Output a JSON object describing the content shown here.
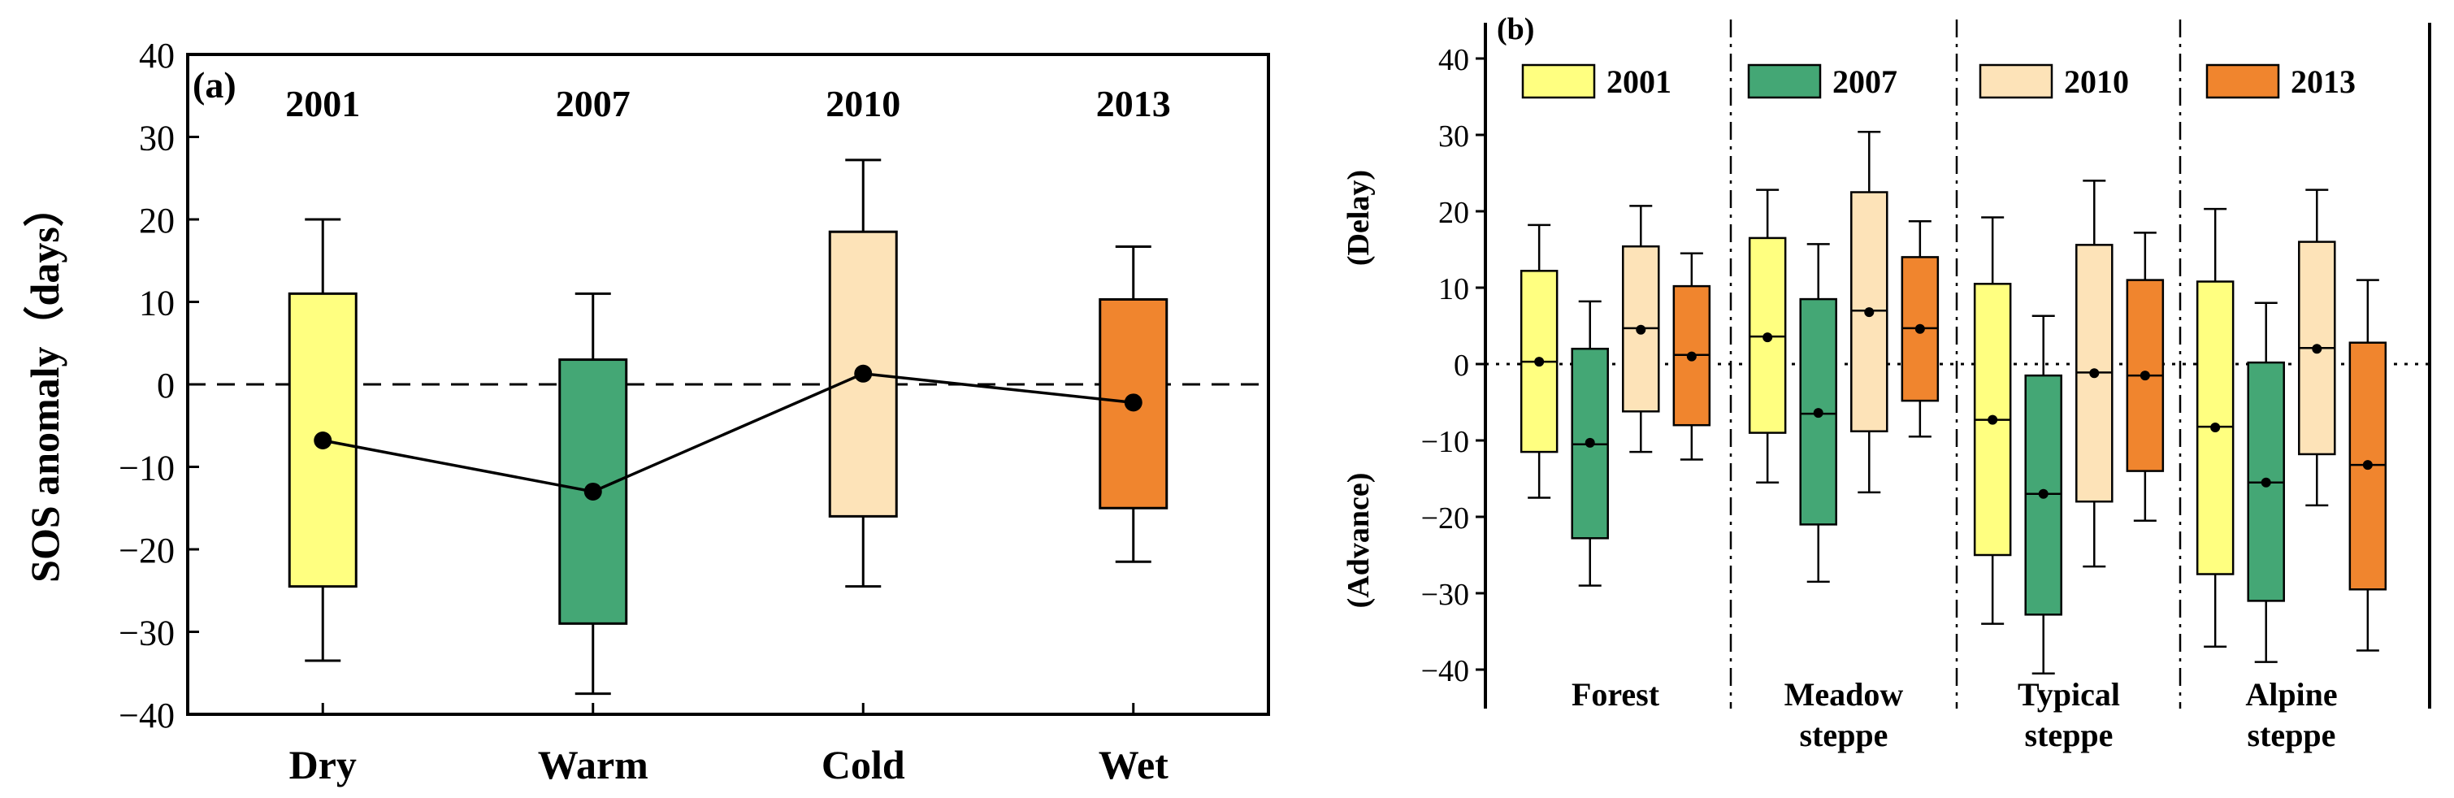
{
  "chart_data": [
    {
      "type": "box",
      "panel_label": "(a)",
      "ylabel": "SOS anomaly（days）",
      "ylim": [
        -40,
        40
      ],
      "yticks": [
        "40",
        "30",
        "20",
        "10",
        "0",
        "−10",
        "−20",
        "−30",
        "−40"
      ],
      "reference_line": 0,
      "categories": [
        "Dry",
        "Warm",
        "Cold",
        "Wet"
      ],
      "years": [
        "2001",
        "2007",
        "2010",
        "2013"
      ],
      "colors": [
        "#ffff80",
        "#44a775",
        "#fde3b8",
        "#f0852e"
      ],
      "boxes": [
        {
          "min": -33.5,
          "q1": -24.5,
          "q3": 11.0,
          "max": 20.0,
          "mean": -6.8
        },
        {
          "min": -37.5,
          "q1": -29.0,
          "q3": 3.0,
          "max": 11.0,
          "mean": -13.0
        },
        {
          "min": -24.5,
          "q1": -16.0,
          "q3": 18.5,
          "max": 27.2,
          "mean": 1.3
        },
        {
          "min": -21.5,
          "q1": -15.0,
          "q3": 10.3,
          "max": 16.7,
          "mean": -2.2
        }
      ]
    },
    {
      "type": "box",
      "panel_label": "(b)",
      "ylabel_top": "(Delay)",
      "ylabel_bottom": "(Advance)",
      "ylim": [
        -45,
        45
      ],
      "yticks": [
        "40",
        "30",
        "20",
        "10",
        "0",
        "−10",
        "−20",
        "−30",
        "−40"
      ],
      "reference_line": 0,
      "legend": [
        "2001",
        "2007",
        "2010",
        "2013"
      ],
      "colors": [
        "#ffff80",
        "#44a775",
        "#fde3b8",
        "#f0852e"
      ],
      "groups": [
        {
          "name_line1": "Forest",
          "name_line2": "",
          "boxes": [
            {
              "min": -17.5,
              "q1": -11.5,
              "median": 0.3,
              "q3": 12.2,
              "max": 18.2,
              "mean": 0.3
            },
            {
              "min": -29.0,
              "q1": -22.8,
              "median": -10.5,
              "q3": 2.0,
              "max": 8.2,
              "mean": -10.3
            },
            {
              "min": -11.5,
              "q1": -6.2,
              "median": 4.7,
              "q3": 15.4,
              "max": 20.7,
              "mean": 4.5
            },
            {
              "min": -12.5,
              "q1": -8.0,
              "median": 1.2,
              "q3": 10.2,
              "max": 14.5,
              "mean": 1.0
            }
          ]
        },
        {
          "name_line1": "Meadow",
          "name_line2": "steppe",
          "boxes": [
            {
              "min": -15.5,
              "q1": -9.0,
              "median": 3.6,
              "q3": 16.5,
              "max": 22.8,
              "mean": 3.5
            },
            {
              "min": -28.5,
              "q1": -21.0,
              "median": -6.5,
              "q3": 8.5,
              "max": 15.7,
              "mean": -6.4
            },
            {
              "min": -16.8,
              "q1": -8.8,
              "median": 7.0,
              "q3": 22.5,
              "max": 30.4,
              "mean": 6.8
            },
            {
              "min": -9.5,
              "q1": -4.8,
              "median": 4.7,
              "q3": 14.0,
              "max": 18.7,
              "mean": 4.6
            }
          ]
        },
        {
          "name_line1": "Typical",
          "name_line2": "steppe",
          "boxes": [
            {
              "min": -34.0,
              "q1": -25.0,
              "median": -7.3,
              "q3": 10.5,
              "max": 19.2,
              "mean": -7.3
            },
            {
              "min": -40.5,
              "q1": -32.8,
              "median": -17.0,
              "q3": -1.5,
              "max": 6.3,
              "mean": -17.0
            },
            {
              "min": -26.5,
              "q1": -18.0,
              "median": -1.1,
              "q3": 15.6,
              "max": 24.0,
              "mean": -1.2
            },
            {
              "min": -20.5,
              "q1": -14.0,
              "median": -1.5,
              "q3": 11.0,
              "max": 17.2,
              "mean": -1.5
            }
          ]
        },
        {
          "name_line1": "Alpine",
          "name_line2": "steppe",
          "boxes": [
            {
              "min": -37.0,
              "q1": -27.5,
              "median": -8.2,
              "q3": 10.8,
              "max": 20.3,
              "mean": -8.3
            },
            {
              "min": -39.0,
              "q1": -31.0,
              "median": -15.5,
              "q3": 0.2,
              "max": 8.0,
              "mean": -15.5
            },
            {
              "min": -18.5,
              "q1": -11.8,
              "median": 2.1,
              "q3": 16.0,
              "max": 22.8,
              "mean": 2.0
            },
            {
              "min": -37.5,
              "q1": -29.5,
              "median": -13.2,
              "q3": 2.8,
              "max": 11.0,
              "mean": -13.2
            }
          ]
        }
      ]
    }
  ]
}
